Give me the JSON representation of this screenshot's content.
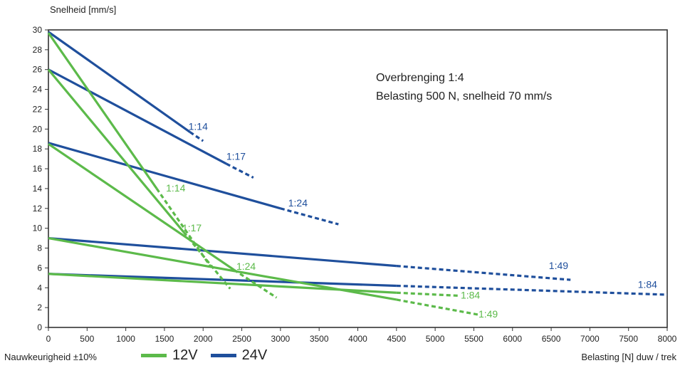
{
  "chart_data": {
    "type": "line",
    "title": "",
    "ylabel": "Snelheid [mm/s]",
    "xlabel": "Belasting [N] duw / trek",
    "xlim": [
      0,
      8000
    ],
    "ylim": [
      0,
      30
    ],
    "x_ticks": [
      0,
      500,
      1000,
      1500,
      2000,
      2500,
      3000,
      3500,
      4000,
      4500,
      5000,
      5500,
      6000,
      6500,
      7000,
      7500,
      8000
    ],
    "y_ticks": [
      0,
      2,
      4,
      6,
      8,
      10,
      12,
      14,
      16,
      18,
      20,
      22,
      24,
      26,
      28,
      30
    ],
    "grid": false,
    "series": [
      {
        "name": "1:14",
        "voltage": "24V",
        "solid": [
          [
            0,
            29.8
          ],
          [
            1830,
            19.7
          ]
        ],
        "dashed": [
          [
            1830,
            19.7
          ],
          [
            2000,
            18.8
          ]
        ]
      },
      {
        "name": "1:17",
        "voltage": "24V",
        "solid": [
          [
            0,
            26.0
          ],
          [
            2300,
            16.5
          ]
        ],
        "dashed": [
          [
            2300,
            16.5
          ],
          [
            2650,
            15.1
          ]
        ]
      },
      {
        "name": "1:24",
        "voltage": "24V",
        "solid": [
          [
            0,
            18.6
          ],
          [
            3000,
            12.0
          ]
        ],
        "dashed": [
          [
            3000,
            12.0
          ],
          [
            3750,
            10.4
          ]
        ]
      },
      {
        "name": "1:49",
        "voltage": "24V",
        "solid": [
          [
            0,
            9.0
          ],
          [
            4500,
            6.2
          ]
        ],
        "dashed": [
          [
            4500,
            6.2
          ],
          [
            6750,
            4.8
          ]
        ]
      },
      {
        "name": "1:84",
        "voltage": "24V",
        "solid": [
          [
            0,
            5.4
          ],
          [
            4500,
            4.2
          ]
        ],
        "dashed": [
          [
            4500,
            4.2
          ],
          [
            8000,
            3.3
          ]
        ]
      },
      {
        "name": "1:14",
        "voltage": "12V",
        "solid": [
          [
            0,
            29.7
          ],
          [
            1400,
            14.0
          ]
        ],
        "dashed": [
          [
            1400,
            14.0
          ],
          [
            2100,
            6.1
          ]
        ]
      },
      {
        "name": "1:17",
        "voltage": "12V",
        "solid": [
          [
            0,
            26.0
          ],
          [
            1750,
            9.6
          ]
        ],
        "dashed": [
          [
            1750,
            9.6
          ],
          [
            2350,
            3.9
          ]
        ]
      },
      {
        "name": "1:24",
        "voltage": "12V",
        "solid": [
          [
            0,
            18.5
          ],
          [
            2400,
            5.8
          ]
        ],
        "dashed": [
          [
            2400,
            5.8
          ],
          [
            2950,
            3.0
          ]
        ]
      },
      {
        "name": "1:49",
        "voltage": "12V",
        "solid": [
          [
            0,
            9.0
          ],
          [
            4500,
            2.8
          ]
        ],
        "dashed": [
          [
            4500,
            2.8
          ],
          [
            5550,
            1.3
          ]
        ]
      },
      {
        "name": "1:84",
        "voltage": "12V",
        "solid": [
          [
            0,
            5.4
          ],
          [
            4500,
            3.5
          ]
        ],
        "dashed": [
          [
            4500,
            3.5
          ],
          [
            5300,
            3.2
          ]
        ]
      }
    ],
    "series_labels": [
      {
        "text": "1:14",
        "voltage": "24V",
        "x": 1810,
        "y": 19.9
      },
      {
        "text": "1:17",
        "voltage": "24V",
        "x": 2300,
        "y": 16.9
      },
      {
        "text": "1:24",
        "voltage": "24V",
        "x": 3100,
        "y": 12.2
      },
      {
        "text": "1:49",
        "voltage": "24V",
        "x": 6470,
        "y": 5.9
      },
      {
        "text": "1:84",
        "voltage": "24V",
        "x": 7620,
        "y": 4.0
      },
      {
        "text": "1:14",
        "voltage": "12V",
        "x": 1520,
        "y": 13.7
      },
      {
        "text": "1:17",
        "voltage": "12V",
        "x": 1730,
        "y": 9.7
      },
      {
        "text": "1:24",
        "voltage": "12V",
        "x": 2430,
        "y": 5.8
      },
      {
        "text": "1:84",
        "voltage": "12V",
        "x": 5330,
        "y": 2.9
      },
      {
        "text": "1:49",
        "voltage": "12V",
        "x": 5560,
        "y": 1.0
      }
    ],
    "legend": [
      {
        "name": "12V",
        "color": "#5cba4a"
      },
      {
        "name": "24V",
        "color": "#1f4f9c"
      }
    ],
    "legend_placement": "bottom-left",
    "annotations": [
      "Overbrenging 1:4",
      "Belasting 500 N, snelheid 70 mm/s"
    ],
    "footnote": "Nauwkeurigheid ±10%"
  },
  "colors": {
    "12V": "#5cba4a",
    "24V": "#1f4f9c",
    "axis": "#333333"
  }
}
